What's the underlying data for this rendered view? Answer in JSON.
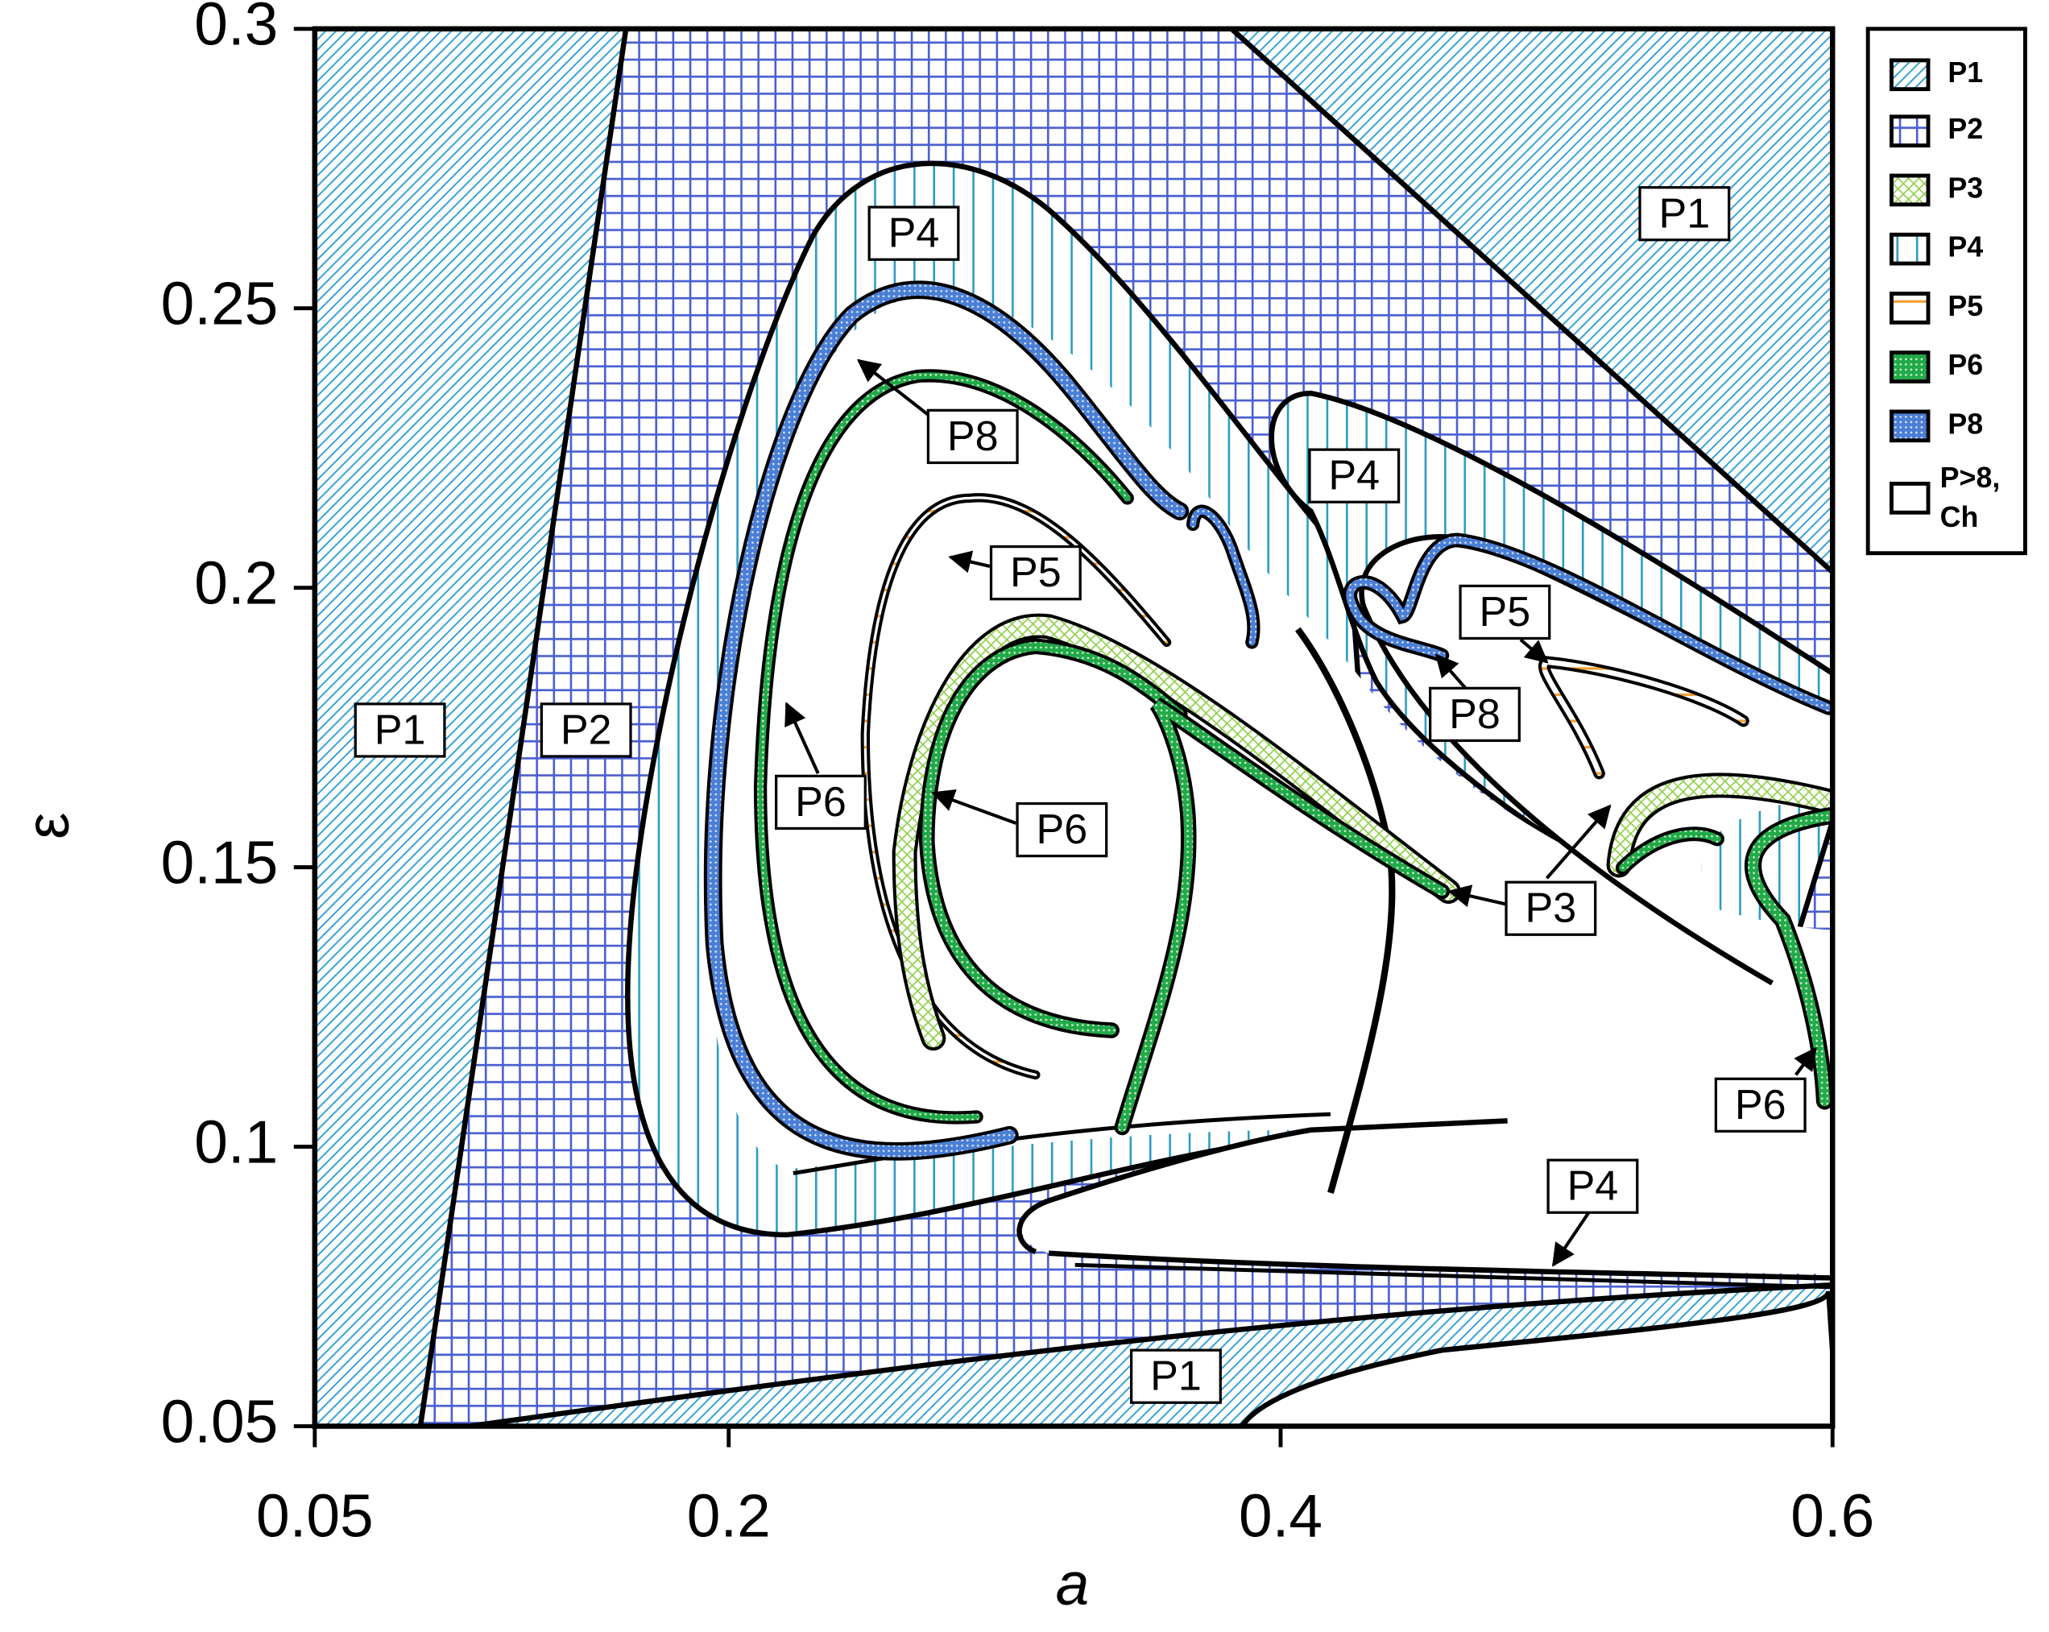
{
  "chart_data": {
    "type": "region-map",
    "xlabel": "a",
    "ylabel": "ε",
    "xlim": [
      0.05,
      0.6
    ],
    "xticks": [
      0.05,
      0.2,
      0.4,
      0.6
    ],
    "ylim": [
      0.05,
      0.3
    ],
    "yticks": [
      0.05,
      0.1,
      0.15,
      0.2,
      0.25,
      0.3
    ],
    "legend": [
      {
        "name": "P1",
        "pattern": "hatch"
      },
      {
        "name": "P2",
        "pattern": "grid"
      },
      {
        "name": "P3",
        "pattern": "cross"
      },
      {
        "name": "P4",
        "pattern": "vlines"
      },
      {
        "name": "P5",
        "pattern": "orange"
      },
      {
        "name": "P6",
        "pattern": "greendots"
      },
      {
        "name": "P8",
        "pattern": "bluedots"
      },
      {
        "lines": [
          "P>8,",
          "Ch"
        ],
        "pattern": "none"
      }
    ],
    "annotations": [
      "P1",
      "P1",
      "P2",
      "P1",
      "P4",
      "P8",
      "P5",
      "P6",
      "P6",
      "P4",
      "P5",
      "P8",
      "P3",
      "P6",
      "P4"
    ]
  }
}
